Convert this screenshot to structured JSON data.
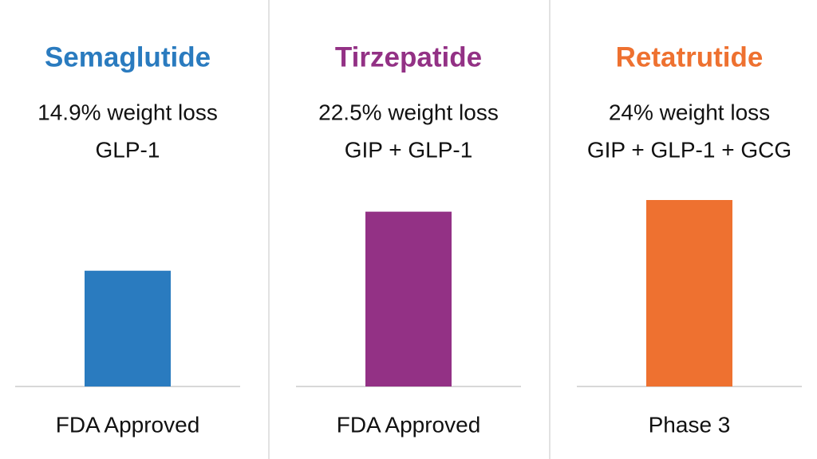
{
  "chart_data": {
    "type": "bar",
    "categories": [
      "Semaglutide",
      "Tirzepatide",
      "Retatrutide"
    ],
    "values": [
      14.9,
      22.5,
      24
    ],
    "value_labels": [
      "14.9% weight loss",
      "22.5% weight loss",
      "24% weight loss"
    ],
    "mechanisms": [
      "GLP-1",
      "GIP + GLP-1",
      "GIP + GLP-1 + GCG"
    ],
    "statuses": [
      "FDA Approved",
      "FDA Approved",
      "Phase 3"
    ],
    "colors": [
      "#2a7bbf",
      "#933185",
      "#ee7130"
    ]
  }
}
